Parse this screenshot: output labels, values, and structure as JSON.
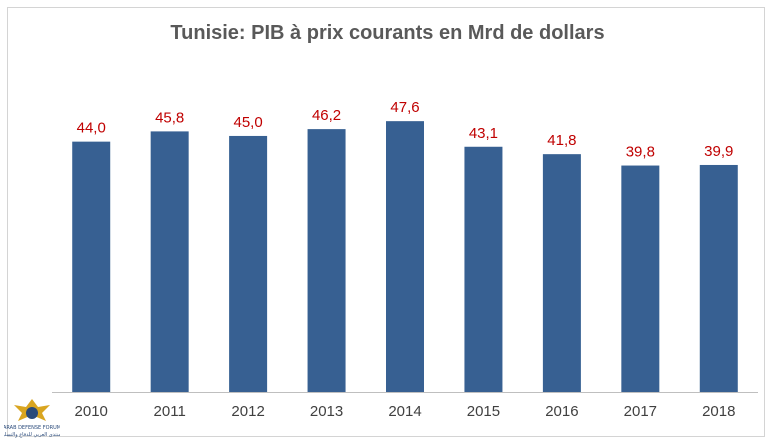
{
  "chart_data": {
    "type": "bar",
    "title": "Tunisie: PIB à prix courants en Mrd de dollars",
    "categories": [
      "2010",
      "2011",
      "2012",
      "2013",
      "2014",
      "2015",
      "2016",
      "2017",
      "2018"
    ],
    "values": [
      44.0,
      45.8,
      45.0,
      46.2,
      47.6,
      43.1,
      41.8,
      39.8,
      39.9
    ],
    "data_labels": [
      "44,0",
      "45,8",
      "45,0",
      "46,2",
      "47,6",
      "43,1",
      "41,8",
      "39,8",
      "39,9"
    ],
    "xlabel": "",
    "ylabel": "",
    "ylim": [
      0,
      50
    ],
    "grid": false,
    "legend": "none",
    "colors": {
      "bar": "#376092",
      "data_label": "#c00000",
      "title": "#595959",
      "tick_label": "#404040",
      "axis": "#bfbfbf"
    }
  },
  "watermark": {
    "logo_text": "ARAB DEFENSE FORUM",
    "logo_subtext": "المنتدى العربي للدفاع والتسليح"
  }
}
